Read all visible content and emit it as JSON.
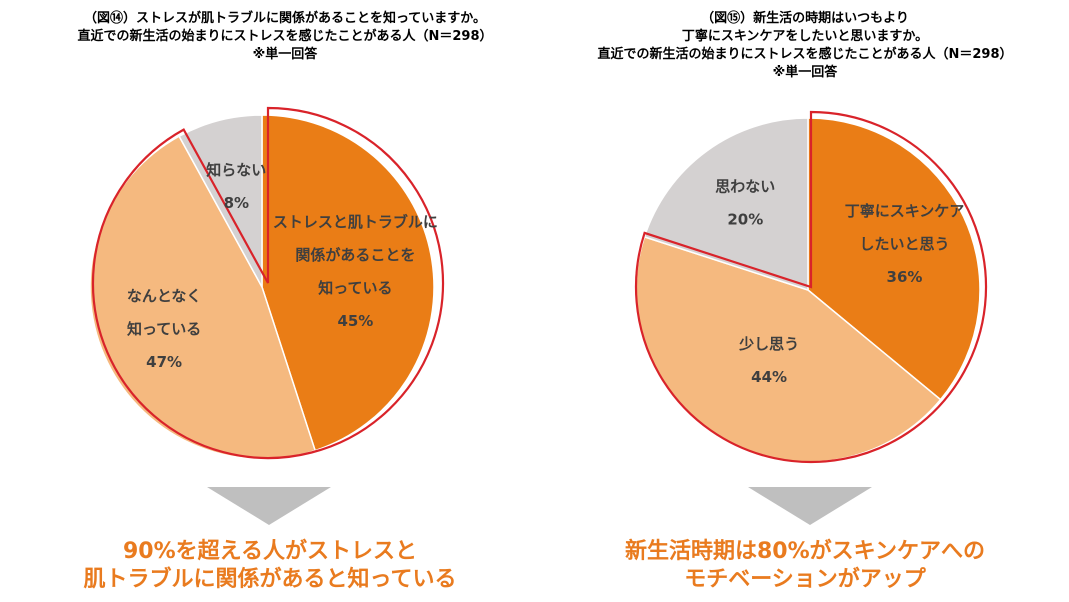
{
  "left": {
    "title_lines": [
      "（図⑭）ストレスが肌トラブルに関係があることを知っていますか。",
      "直近での新生活の始まりにストレスを感じたことがある人（N＝298）",
      "※単一回答"
    ],
    "conclusion_lines": [
      "90%を超える人がストレスと",
      "肌トラブルに関係があると知っている"
    ]
  },
  "right": {
    "title_lines": [
      "（図⑮）新生活の時期はいつもより",
      "丁寧にスキンケアをしたいと思いますか。",
      "直近での新生活の始まりにストレスを感じたことがある人（N＝298）",
      "※単一回答"
    ],
    "conclusion_lines": [
      "新生活時期は80%がスキンケアへの",
      "モチベーションがアップ"
    ]
  },
  "colors": {
    "dark_orange": "#ea7d16",
    "light_orange": "#f5b97f",
    "gray": "#d4d1d1",
    "highlight_border": "#d9232a",
    "arrow": "#bfbfbf",
    "conclusion_text": "#e97b1f"
  },
  "chart_data": [
    {
      "type": "pie",
      "start_angle_deg": 0,
      "direction": "clockwise",
      "slices": [
        {
          "label_lines": [
            "ストレスと肌トラブルに",
            "関係があることを",
            "知っている"
          ],
          "value": 45,
          "value_label": "45%",
          "color": "#ea7d16"
        },
        {
          "label_lines": [
            "なんとなく",
            "知っている"
          ],
          "value": 47,
          "value_label": "47%",
          "color": "#f5b97f"
        },
        {
          "label_lines": [
            "知らない"
          ],
          "value": 8,
          "value_label": "8%",
          "color": "#d4d1d1"
        }
      ],
      "highlighted_slices": [
        0,
        1
      ]
    },
    {
      "type": "pie",
      "start_angle_deg": 0,
      "direction": "clockwise",
      "slices": [
        {
          "label_lines": [
            "丁寧にスキンケア",
            "したいと思う"
          ],
          "value": 36,
          "value_label": "36%",
          "color": "#ea7d16"
        },
        {
          "label_lines": [
            "少し思う"
          ],
          "value": 44,
          "value_label": "44%",
          "color": "#f5b97f"
        },
        {
          "label_lines": [
            "思わない"
          ],
          "value": 20,
          "value_label": "20%",
          "color": "#d4d1d1"
        }
      ],
      "highlighted_slices": [
        0,
        1
      ]
    }
  ]
}
